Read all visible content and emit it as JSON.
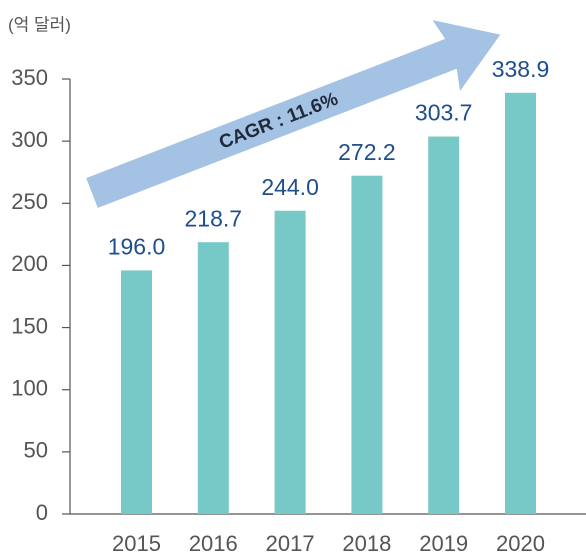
{
  "chart_data": {
    "type": "bar",
    "unit_label": "(억 달러)",
    "annotation": "CAGR : 11.6%",
    "categories": [
      "2015",
      "2016",
      "2017",
      "2018",
      "2019",
      "2020"
    ],
    "values": [
      196.0,
      218.7,
      244.0,
      272.2,
      303.7,
      338.9
    ],
    "value_labels": [
      "196.0",
      "218.7",
      "244.0",
      "272.2",
      "303.7",
      "338.9"
    ],
    "color": "#76c9c6",
    "ylim": [
      0,
      350
    ],
    "yticks": [
      0,
      50,
      100,
      150,
      200,
      250,
      300,
      350
    ]
  }
}
